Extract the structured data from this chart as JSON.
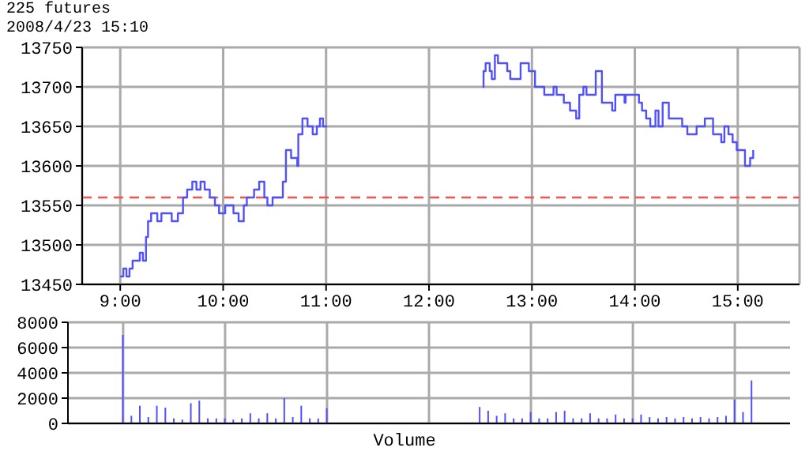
{
  "chart_data": [
    {
      "type": "step",
      "title": "225 futures",
      "subtitle": "2008/4/23 15:10",
      "color": "#5050ff",
      "marker": "none",
      "grid": true,
      "x": [
        9.0,
        9.03,
        9.06,
        9.09,
        9.12,
        9.19,
        9.22,
        9.25,
        9.27,
        9.3,
        9.36,
        9.4,
        9.5,
        9.56,
        9.61,
        9.65,
        9.7,
        9.74,
        9.78,
        9.82,
        9.87,
        9.92,
        9.96,
        10.02,
        10.1,
        10.15,
        10.2,
        10.23,
        10.3,
        10.35,
        10.4,
        10.43,
        10.48,
        10.58,
        10.61,
        10.66,
        10.72,
        10.73,
        10.77,
        10.82,
        10.87,
        10.91,
        10.94,
        10.97,
        11.01,
        11.5,
        12.52,
        12.53,
        12.55,
        12.59,
        12.61,
        12.64,
        12.67,
        12.76,
        12.79,
        12.89,
        12.97,
        13.03,
        13.12,
        13.21,
        13.24,
        13.31,
        13.37,
        13.43,
        13.46,
        13.5,
        13.53,
        13.62,
        13.68,
        13.78,
        13.81,
        13.9,
        13.91,
        14.04,
        14.07,
        14.11,
        14.15,
        14.2,
        14.23,
        14.27,
        14.33,
        14.44,
        14.46,
        14.51,
        14.6,
        14.68,
        14.76,
        14.84,
        14.87,
        14.91,
        14.95,
        14.99,
        15.07,
        15.12,
        15.15
      ],
      "values": [
        13460,
        13470,
        13460,
        13470,
        13480,
        13490,
        13480,
        13510,
        13530,
        13540,
        13530,
        13540,
        13530,
        13540,
        13560,
        13570,
        13580,
        13570,
        13580,
        13570,
        13560,
        13550,
        13540,
        13550,
        13540,
        13530,
        13550,
        13560,
        13570,
        13580,
        13560,
        13550,
        13560,
        13580,
        13620,
        13610,
        13600,
        13640,
        13660,
        13650,
        13640,
        13650,
        13660,
        13650,
        13650,
        null,
        13700,
        13720,
        13730,
        13720,
        13710,
        13740,
        13730,
        13720,
        13710,
        13730,
        13720,
        13700,
        13690,
        13700,
        13690,
        13680,
        13670,
        13660,
        13690,
        13700,
        13690,
        13720,
        13680,
        13670,
        13690,
        13680,
        13690,
        13680,
        13670,
        13660,
        13650,
        13670,
        13650,
        13680,
        13660,
        13660,
        13650,
        13640,
        13650,
        13660,
        13640,
        13630,
        13650,
        13640,
        13630,
        13620,
        13600,
        13610,
        13620
      ],
      "xlim": [
        8.63,
        15.6
      ],
      "xticks": [
        {
          "value": 9,
          "label": "9:00"
        },
        {
          "value": 10,
          "label": "10:00"
        },
        {
          "value": 11,
          "label": "11:00"
        },
        {
          "value": 12,
          "label": "12:00"
        },
        {
          "value": 13,
          "label": "13:00"
        },
        {
          "value": 14,
          "label": "14:00"
        },
        {
          "value": 15,
          "label": "15:00"
        }
      ],
      "ylim": [
        13450,
        13750
      ],
      "yticks": [
        13450,
        13500,
        13550,
        13600,
        13650,
        13700,
        13750
      ],
      "ref_lines": [
        {
          "axis": "y",
          "value": 13560,
          "color": "#ff5050",
          "line_style": "dashed"
        }
      ]
    },
    {
      "type": "bar",
      "xlabel": "Volume",
      "color": "#5050ff",
      "grid": true,
      "tick_labels": "y",
      "categories": [
        null,
        null,
        null,
        null,
        null,
        null,
        null,
        null,
        null,
        null,
        null,
        null,
        null,
        null,
        null,
        null,
        null,
        null,
        null,
        null,
        null,
        null,
        null,
        null,
        null,
        null,
        null,
        null,
        null,
        null,
        null,
        null,
        null,
        null,
        null,
        null,
        null,
        null,
        null,
        null,
        null,
        null,
        null,
        null,
        null,
        null,
        null,
        null,
        null,
        null,
        null,
        null,
        null,
        null,
        null,
        null,
        null,
        null,
        null,
        null,
        null,
        null,
        null,
        null,
        null,
        null,
        null,
        null,
        null,
        null,
        null,
        null,
        null,
        null,
        null,
        null,
        null,
        null,
        null,
        null,
        null,
        null,
        null,
        null,
        null
      ],
      "values": [
        0,
        0,
        0,
        0,
        0,
        0,
        7000,
        600,
        1400,
        500,
        1400,
        1250,
        400,
        300,
        1600,
        1800,
        400,
        400,
        400,
        300,
        400,
        800,
        400,
        800,
        400,
        2000,
        500,
        1400,
        400,
        400,
        1200,
        0,
        0,
        0,
        0,
        0,
        0,
        0,
        0,
        0,
        0,
        0,
        0,
        0,
        0,
        0,
        0,
        0,
        1300,
        1000,
        600,
        800,
        400,
        400,
        900,
        400,
        400,
        900,
        1000,
        400,
        400,
        800,
        400,
        400,
        700,
        400,
        400,
        700,
        500,
        400,
        500,
        400,
        500,
        400,
        500,
        400,
        500,
        600,
        1900,
        900,
        3400,
        0,
        0,
        0,
        0
      ],
      "ylim": [
        0,
        8000
      ],
      "yticks": [
        0,
        2000,
        4000,
        6000,
        8000
      ]
    }
  ]
}
